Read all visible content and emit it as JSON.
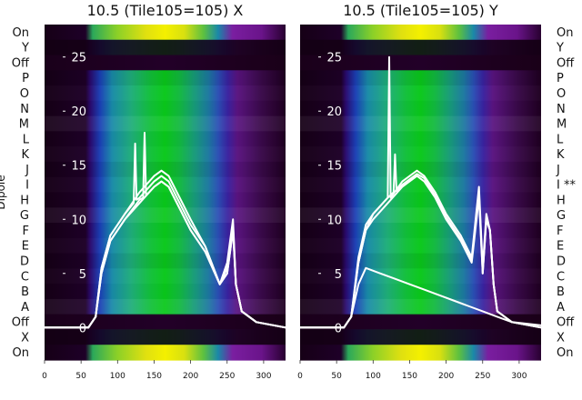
{
  "chart_data": [
    {
      "type": "heatmap",
      "title": "10.5 (Tile105=105) X",
      "ylabel": "Dipole",
      "row_labels": [
        "On",
        "Y",
        "Off",
        "P",
        "O",
        "N",
        "M",
        "L",
        "K",
        "J",
        "I",
        "H",
        "G",
        "F",
        "E",
        "D",
        "C",
        "B",
        "A",
        "Off",
        "X",
        "On"
      ],
      "xlim": [
        0,
        330
      ],
      "x_ticks": [
        "0",
        "50",
        "100",
        "150",
        "200",
        "250",
        "300"
      ],
      "overlay_ylim": [
        -3,
        28
      ],
      "overlay_y_ticks": [
        "0",
        "5",
        "10",
        "15",
        "20",
        "25"
      ],
      "overlay_series": [
        {
          "x": [
            0,
            60,
            70,
            78,
            90,
            110,
            130,
            150,
            160,
            170,
            185,
            200,
            220,
            240,
            250,
            258,
            262,
            270,
            290,
            330
          ],
          "values": [
            0,
            0,
            1,
            5,
            8,
            10,
            11.5,
            13,
            13.5,
            13,
            11,
            9,
            7,
            4,
            5,
            9,
            4,
            1.5,
            0.5,
            0
          ]
        },
        {
          "x": [
            0,
            60,
            70,
            78,
            90,
            110,
            130,
            150,
            160,
            170,
            185,
            200,
            220,
            240,
            250,
            258,
            262,
            270,
            290,
            330
          ],
          "values": [
            0,
            0,
            1,
            5.5,
            8.5,
            10.5,
            12.5,
            14,
            14.5,
            14,
            12,
            10,
            7.5,
            4,
            6,
            10,
            4,
            1.5,
            0.5,
            0
          ]
        },
        {
          "x": [
            0,
            60,
            70,
            78,
            90,
            110,
            122,
            124,
            126,
            130,
            150,
            160,
            170,
            185,
            200,
            220,
            240,
            250,
            258,
            262,
            270,
            290,
            330
          ],
          "values": [
            0,
            0,
            1,
            5.5,
            8.5,
            10.5,
            11.5,
            17,
            11.8,
            12,
            13.5,
            14,
            13.5,
            11.5,
            9.5,
            7.5,
            4,
            5.5,
            9.5,
            4,
            1.5,
            0.5,
            0
          ]
        },
        {
          "x": [
            0,
            60,
            70,
            78,
            90,
            110,
            130,
            135,
            137,
            139,
            150,
            160,
            170,
            185,
            200,
            220,
            240,
            250,
            258,
            262,
            270,
            290,
            330
          ],
          "values": [
            0,
            0,
            1,
            5,
            8,
            10,
            11.8,
            12,
            18,
            12.2,
            13,
            13.5,
            13,
            11,
            9,
            7,
            4,
            5,
            9,
            4,
            1.5,
            0.5,
            0
          ]
        }
      ]
    },
    {
      "type": "heatmap",
      "title": "10.5 (Tile105=105) Y",
      "row_labels": [
        "On",
        "Y",
        "Off",
        "P",
        "O",
        "N",
        "M",
        "L",
        "K",
        "J",
        "I **",
        "H",
        "G",
        "F",
        "E",
        "D",
        "C",
        "B",
        "A",
        "Off",
        "X",
        "On"
      ],
      "xlim": [
        0,
        330
      ],
      "x_ticks": [
        "0",
        "50",
        "100",
        "150",
        "200",
        "250",
        "300"
      ],
      "overlay_ylim": [
        -3,
        28
      ],
      "overlay_y_ticks": [
        "0",
        "5",
        "10",
        "15",
        "20",
        "25"
      ],
      "overlay_series": [
        {
          "x": [
            0,
            60,
            70,
            80,
            90,
            100,
            120,
            140,
            160,
            170,
            185,
            200,
            220,
            235,
            245,
            250,
            255,
            260,
            265,
            270,
            290,
            330
          ],
          "values": [
            0,
            0,
            1,
            6,
            9,
            10,
            11.5,
            13,
            14,
            13.5,
            12,
            10,
            8,
            6,
            12,
            5,
            10,
            9,
            4,
            1.5,
            0.5,
            0
          ]
        },
        {
          "x": [
            0,
            60,
            70,
            80,
            90,
            100,
            120,
            122,
            124,
            140,
            160,
            170,
            185,
            200,
            220,
            235,
            245,
            250,
            255,
            260,
            265,
            270,
            290,
            330
          ],
          "values": [
            0,
            0,
            1,
            6.5,
            9.5,
            10.5,
            12,
            25,
            12,
            13.5,
            14.5,
            14,
            12.5,
            10.5,
            8.5,
            6.5,
            13,
            5.5,
            10.5,
            9,
            4,
            1.5,
            0.5,
            0
          ]
        },
        {
          "x": [
            0,
            60,
            70,
            80,
            90,
            100,
            120,
            128,
            130,
            132,
            140,
            160,
            170,
            185,
            200,
            220,
            235,
            245,
            250,
            255,
            260,
            265,
            270,
            290,
            330
          ],
          "values": [
            0,
            0,
            1,
            6,
            9,
            10.5,
            12,
            12.5,
            16,
            12.6,
            13.2,
            14.2,
            13.8,
            12.2,
            10.2,
            8.2,
            6.2,
            12.5,
            5,
            10,
            9,
            4,
            1.5,
            0.5,
            0
          ]
        },
        {
          "x": [
            0,
            60,
            70,
            80,
            90,
            110,
            130,
            150,
            170,
            190,
            210,
            230,
            250,
            270,
            290,
            330
          ],
          "values": [
            0,
            0,
            1,
            4,
            5.5,
            5,
            4.5,
            4,
            3.5,
            3,
            2.5,
            2,
            1.5,
            1,
            0.5,
            0.2
          ]
        }
      ]
    }
  ]
}
